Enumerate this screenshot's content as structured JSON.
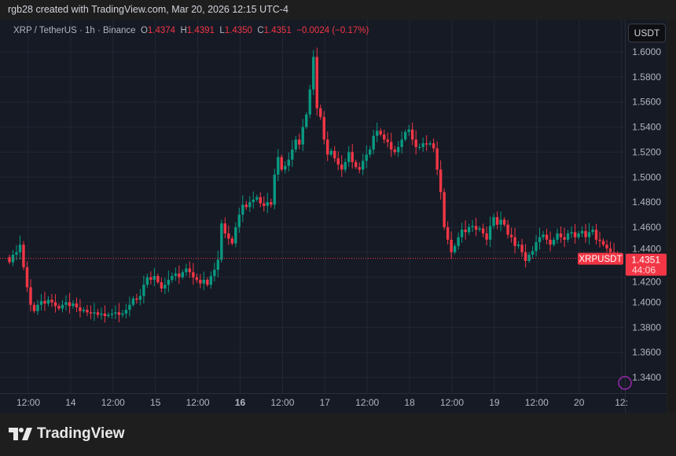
{
  "credit": "rgb28 created with TradingView.com, Mar 20, 2026 12:15 UTC-4",
  "legend": {
    "symbol": "XRP / TetherUS · 1h · Binance",
    "o_label": "O",
    "o": "1.4374",
    "h_label": "H",
    "h": "1.4391",
    "l_label": "L",
    "l": "1.4350",
    "c_label": "C",
    "c": "1.4351",
    "change": "−0.0024 (−0.17%)"
  },
  "currency_button": "USDT",
  "price_label": {
    "symbol": "XRPUSDT",
    "price": "1.4351",
    "countdown": "44:06"
  },
  "logo": "TradingView",
  "colors": {
    "up": "#089981",
    "down": "#f23645",
    "background": "#161a25",
    "grid": "#232735"
  },
  "chart_data": {
    "type": "candlestick",
    "interval": "1h",
    "y_ticks": [
      "1.6000",
      "1.5800",
      "1.5600",
      "1.5400",
      "1.5200",
      "1.5000",
      "1.4800",
      "1.4600",
      "1.4400",
      "1.4200",
      "1.4000",
      "1.3800",
      "1.3600",
      "1.3400"
    ],
    "ylim": [
      1.327,
      1.626
    ],
    "x_ticks": [
      "12:00",
      "14",
      "12:00",
      "15",
      "12:00",
      "16",
      "12:00",
      "17",
      "12:00",
      "18",
      "12:00",
      "19",
      "12:00",
      "20",
      "12:"
    ],
    "last_candle": {
      "open": 1.4374,
      "high": 1.4391,
      "low": 1.435,
      "close": 1.4351
    },
    "current_price": 1.4351,
    "grid": true,
    "close": [
      1.432,
      1.438,
      1.44,
      1.446,
      1.428,
      1.412,
      1.398,
      1.393,
      1.398,
      1.401,
      1.399,
      1.402,
      1.4,
      1.397,
      1.395,
      1.398,
      1.4,
      1.397,
      1.399,
      1.396,
      1.393,
      1.394,
      1.392,
      1.391,
      1.392,
      1.39,
      1.391,
      1.389,
      1.39,
      1.391,
      1.392,
      1.39,
      1.391,
      1.394,
      1.398,
      1.403,
      1.402,
      1.405,
      1.414,
      1.42,
      1.418,
      1.421,
      1.416,
      1.411,
      1.414,
      1.418,
      1.421,
      1.423,
      1.42,
      1.424,
      1.427,
      1.424,
      1.42,
      1.418,
      1.415,
      1.418,
      1.414,
      1.421,
      1.426,
      1.434,
      1.463,
      1.455,
      1.451,
      1.447,
      1.46,
      1.47,
      1.478,
      1.476,
      1.48,
      1.482,
      1.484,
      1.479,
      1.477,
      1.48,
      1.478,
      1.502,
      1.516,
      1.506,
      1.509,
      1.514,
      1.522,
      1.53,
      1.526,
      1.54,
      1.55,
      1.57,
      1.596,
      1.555,
      1.548,
      1.53,
      1.518,
      1.521,
      1.515,
      1.51,
      1.506,
      1.512,
      1.52,
      1.512,
      1.508,
      1.506,
      1.513,
      1.518,
      1.522,
      1.533,
      1.537,
      1.534,
      1.53,
      1.528,
      1.522,
      1.52,
      1.524,
      1.53,
      1.536,
      1.538,
      1.53,
      1.524,
      1.524,
      1.527,
      1.526,
      1.527,
      1.523,
      1.506,
      1.488,
      1.46,
      1.45,
      1.44,
      1.445,
      1.452,
      1.458,
      1.456,
      1.46,
      1.461,
      1.458,
      1.459,
      1.455,
      1.45,
      1.461,
      1.468,
      1.462,
      1.466,
      1.462,
      1.454,
      1.452,
      1.445,
      1.446,
      1.44,
      1.433,
      1.438,
      1.441,
      1.448,
      1.452,
      1.454,
      1.45,
      1.446,
      1.45,
      1.455,
      1.452,
      1.45,
      1.455,
      1.456,
      1.452,
      1.455,
      1.457,
      1.452,
      1.456,
      1.458,
      1.45,
      1.449,
      1.446,
      1.443,
      1.44,
      1.438,
      1.4374,
      1.4351
    ]
  }
}
